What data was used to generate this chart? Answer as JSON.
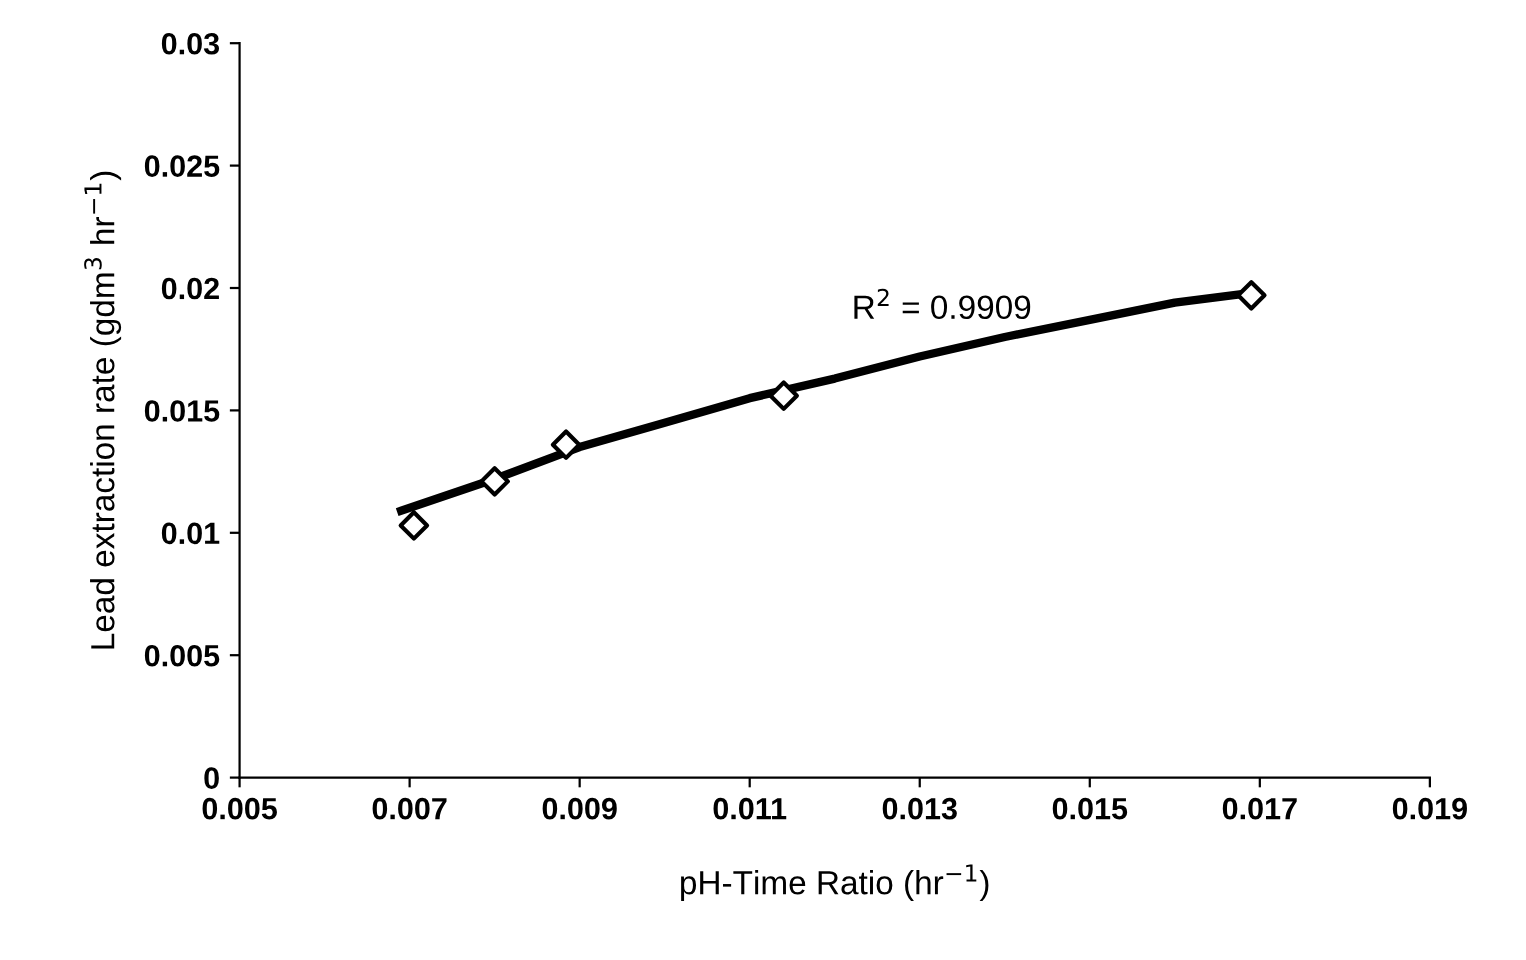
{
  "chart_data": {
    "type": "scatter",
    "xlabel": "pH-Time Ratio (hr$^{−1}$)",
    "ylabel": "Lead extraction rate (gdm$^{3}$ hr$^{−1}$)",
    "series": [
      {
        "color": "#000000",
        "marker": "diamond",
        "x": [
          0.00705,
          0.008,
          0.00884,
          0.0114,
          0.0169
        ],
        "values": [
          0.0103,
          0.0121,
          0.0136,
          0.0156,
          0.0197
        ]
      },
      {
        "type": "line",
        "color": "#000000",
        "marker": "none",
        "line_style": "solid",
        "x": [
          0.0069,
          0.008,
          0.009,
          0.01,
          0.011,
          0.012,
          0.013,
          0.014,
          0.015,
          0.016,
          0.0169
        ],
        "values": [
          0.0109,
          0.0122,
          0.0135,
          0.0145,
          0.0155,
          0.0163,
          0.0172,
          0.018,
          0.0187,
          0.0194,
          0.0198
        ]
      }
    ],
    "annotations": [
      "R$^{2}$ = 0.9909"
    ],
    "xlim": [
      0.005,
      0.019
    ],
    "xticks": [
      0.005,
      0.007,
      0.009,
      0.011,
      0.013,
      0.015,
      0.017,
      0.019
    ],
    "ylim": [
      0,
      0.03
    ],
    "yticks": [
      0,
      0.005,
      0.01,
      0.015,
      0.02,
      0.025,
      0.03
    ],
    "grid": false,
    "legend": false
  }
}
